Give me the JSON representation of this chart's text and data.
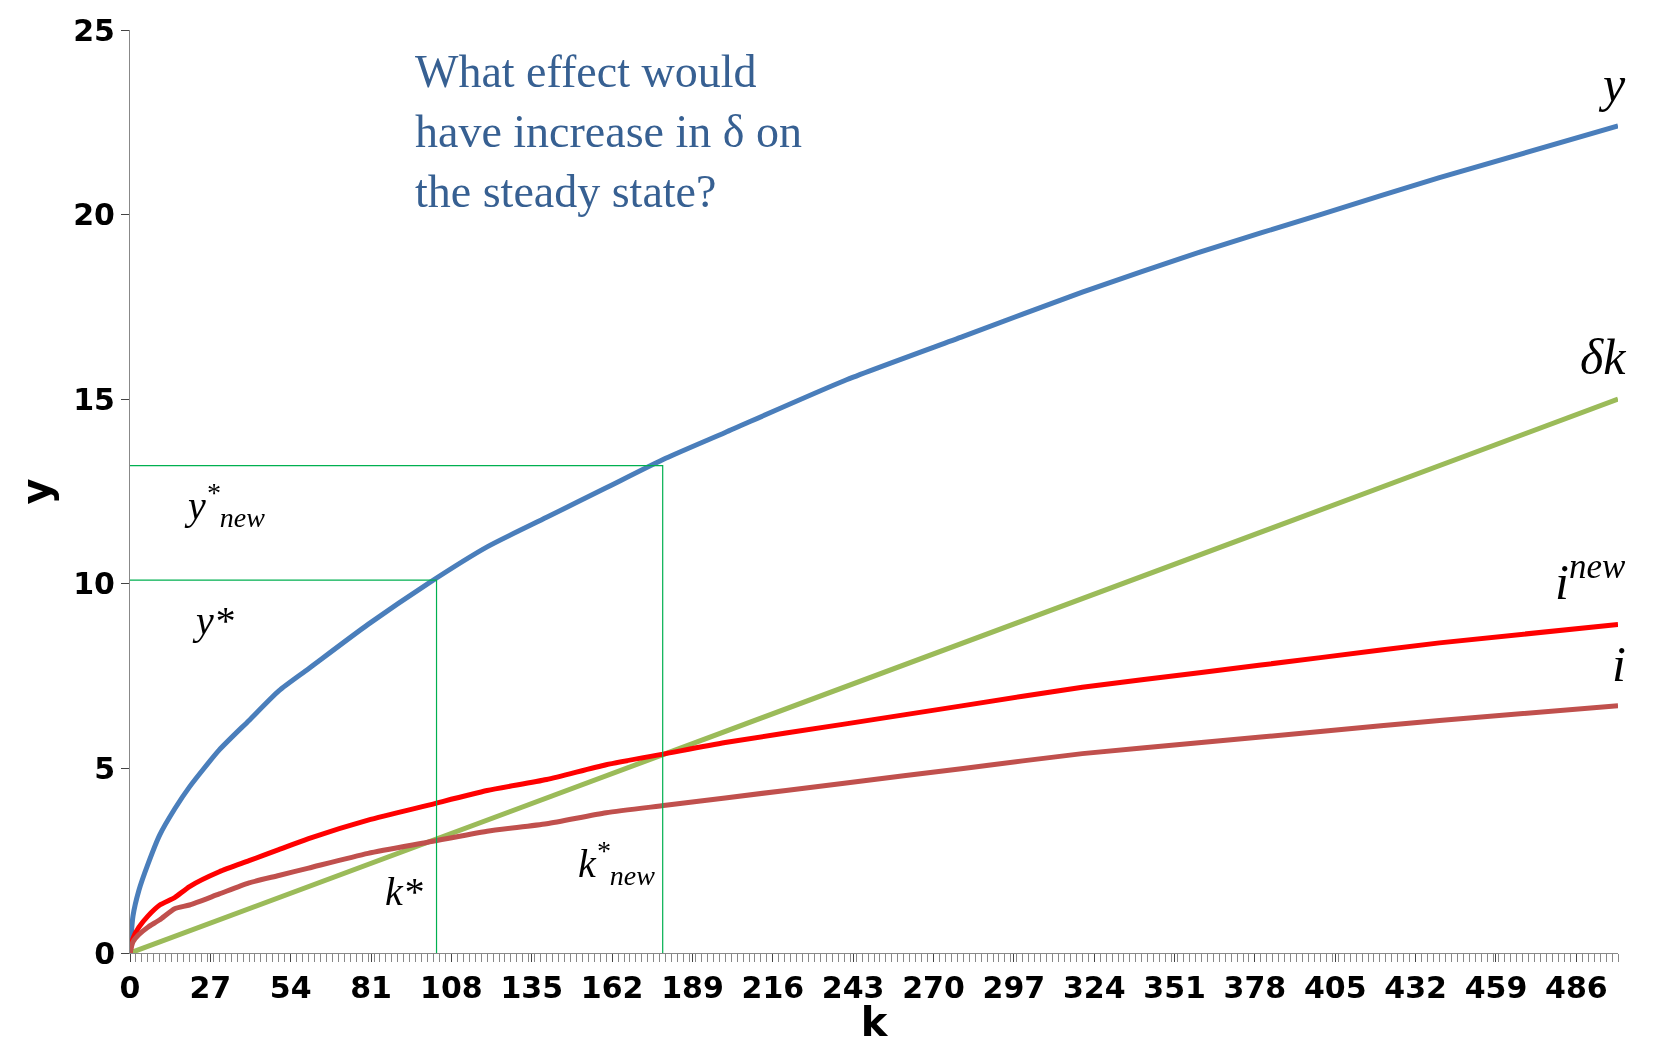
{
  "chart_data": {
    "type": "line",
    "xlabel": "k",
    "ylabel": "y",
    "annotations": [
      "What effect would have increase in δ on the steady state?",
      "y*",
      "y$^{*}$$_{new}$",
      "k*",
      "k$^{*}$$_{new}$"
    ],
    "series": [
      {
        "name": "y",
        "color": "#4a7ebb",
        "x": [
          0,
          1,
          3,
          6,
          10,
          15,
          20,
          30,
          40,
          50,
          60,
          80,
          100,
          120,
          140,
          160,
          180,
          200,
          240,
          280,
          320,
          360,
          400,
          440,
          500
        ],
        "values": [
          0,
          1.0,
          1.7,
          2.4,
          3.2,
          3.9,
          4.5,
          5.5,
          6.3,
          7.1,
          7.7,
          8.9,
          10.0,
          11.0,
          11.8,
          12.6,
          13.4,
          14.1,
          15.5,
          16.7,
          17.9,
          19.0,
          20.0,
          21.0,
          22.4
        ]
      },
      {
        "name": "δk",
        "color": "#9bbb59",
        "x": [
          0,
          500
        ],
        "values": [
          0,
          15
        ]
      },
      {
        "name": "i$^{new}$",
        "color": "#ff0000",
        "x": [
          0,
          1,
          3,
          6,
          10,
          15,
          20,
          30,
          40,
          50,
          60,
          80,
          100,
          120,
          140,
          160,
          180,
          200,
          240,
          280,
          320,
          360,
          400,
          440,
          500
        ],
        "values": [
          0,
          0.4,
          0.7,
          1.0,
          1.3,
          1.5,
          1.8,
          2.2,
          2.5,
          2.8,
          3.1,
          3.6,
          4.0,
          4.4,
          4.7,
          5.1,
          5.4,
          5.7,
          6.2,
          6.7,
          7.2,
          7.6,
          8.0,
          8.4,
          8.9
        ]
      },
      {
        "name": "i",
        "color": "#c0504d",
        "x": [
          0,
          1,
          3,
          6,
          10,
          15,
          20,
          30,
          40,
          50,
          60,
          80,
          100,
          120,
          140,
          160,
          180,
          200,
          240,
          280,
          320,
          360,
          400,
          440,
          500
        ],
        "values": [
          0,
          0.3,
          0.5,
          0.7,
          0.9,
          1.2,
          1.3,
          1.6,
          1.9,
          2.1,
          2.3,
          2.7,
          3.0,
          3.3,
          3.5,
          3.8,
          4.0,
          4.2,
          4.6,
          5.0,
          5.4,
          5.7,
          6.0,
          6.3,
          6.7
        ]
      },
      {
        "color": "#00b050",
        "x": [
          0,
          103,
          103
        ],
        "values": [
          10.1,
          10.1,
          0
        ]
      },
      {
        "color": "#00b050",
        "x": [
          0,
          179,
          179
        ],
        "values": [
          13.2,
          13.2,
          0
        ]
      }
    ],
    "xlim": [
      0,
      500
    ],
    "ylim": [
      0,
      25
    ],
    "xticks": [
      0,
      27,
      54,
      81,
      108,
      135,
      162,
      189,
      216,
      243,
      270,
      297,
      324,
      351,
      378,
      405,
      432,
      459,
      486
    ],
    "yticks": [
      0,
      5,
      10,
      15,
      20,
      25
    ],
    "legend": false,
    "marker": "none",
    "line_style": "solid"
  }
}
